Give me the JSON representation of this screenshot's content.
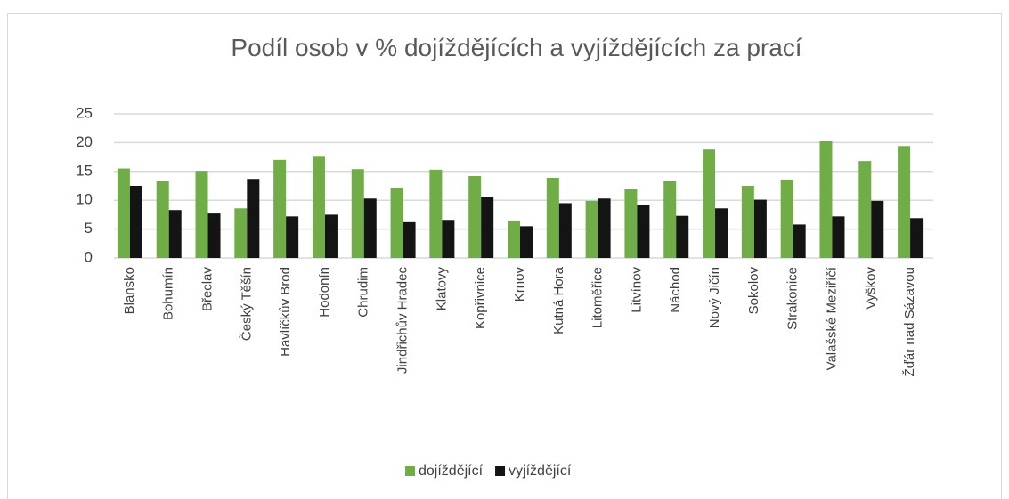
{
  "chart_data": {
    "type": "bar",
    "title": "Podíl osob v % dojíždějících a vyjíždějících za prací",
    "categories": [
      "Blansko",
      "Bohumín",
      "Břeclav",
      "Český Těšín",
      "Havlíčkův Brod",
      "Hodonín",
      "Chrudim",
      "Jindřichův Hradec",
      "Klatovy",
      "Kopřivnice",
      "Krnov",
      "Kutná Hora",
      "Litoměřice",
      "Litvínov",
      "Náchod",
      "Nový Jičín",
      "Sokolov",
      "Strakonice",
      "Valašské Meziříčí",
      "Vyškov",
      "Žďár nad Sázavou"
    ],
    "series": [
      {
        "name": "dojíždějící",
        "color": "#70ad47",
        "values": [
          15.5,
          13.4,
          15.1,
          8.6,
          17,
          17.7,
          15.4,
          12.2,
          15.3,
          14.2,
          6.5,
          13.9,
          9.9,
          12,
          13.3,
          18.8,
          12.5,
          13.6,
          20.3,
          16.8,
          19.4
        ]
      },
      {
        "name": "vyjíždějící",
        "color": "#141414",
        "values": [
          12.5,
          8.3,
          7.7,
          13.7,
          7.2,
          7.5,
          10.3,
          6.2,
          6.6,
          10.6,
          5.5,
          9.5,
          10.3,
          9.2,
          7.3,
          8.6,
          10.1,
          5.8,
          7.2,
          9.9,
          6.9
        ]
      }
    ],
    "ylim": [
      0,
      25
    ],
    "yticks": [
      0,
      5,
      10,
      15,
      20,
      25
    ],
    "grid": true,
    "legend": "bottom"
  }
}
